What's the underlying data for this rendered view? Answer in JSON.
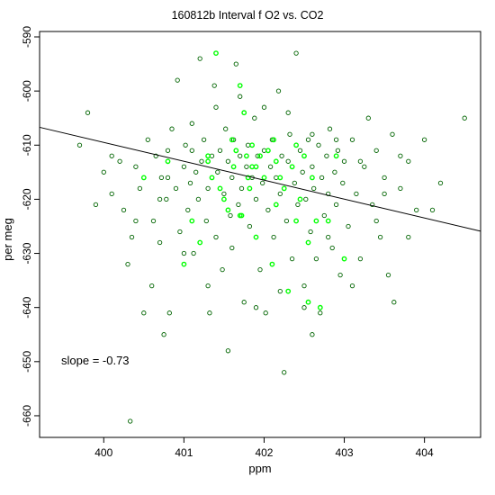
{
  "chart_data": {
    "type": "scatter",
    "title": "160812b   Interval f O2 vs. CO2",
    "xlabel": "ppm",
    "ylabel": "per meg",
    "xlim": [
      399.2,
      404.7
    ],
    "ylim": [
      -664,
      -589
    ],
    "x_ticks": [
      400,
      401,
      402,
      403,
      404
    ],
    "x_tick_labels": [
      "400",
      "401",
      "402",
      "403",
      "404"
    ],
    "y_ticks": [
      -590,
      -600,
      -610,
      -620,
      -630,
      -640,
      -650,
      -660
    ],
    "y_tick_labels": [
      "-590",
      "-600",
      "-610",
      "-620",
      "-630",
      "-640",
      "-650",
      "-660"
    ],
    "grid": false,
    "annotation": "slope =  -0.73",
    "colors": {
      "dark_series": "#006400",
      "bright_series": "#00ff00",
      "regression_line": "#000000",
      "frame": "#000000"
    },
    "regression_line": {
      "x": [
        399.2,
        404.7
      ],
      "y": [
        -606.7,
        -625.9
      ]
    },
    "series": [
      {
        "color": "#006400",
        "points": [
          [
            399.7,
            -610
          ],
          [
            399.8,
            -604
          ],
          [
            399.9,
            -621
          ],
          [
            400.0,
            -615
          ],
          [
            400.1,
            -619
          ],
          [
            400.2,
            -613
          ],
          [
            400.25,
            -622
          ],
          [
            400.3,
            -632
          ],
          [
            400.35,
            -627
          ],
          [
            400.4,
            -614
          ],
          [
            400.45,
            -618
          ],
          [
            400.5,
            -641
          ],
          [
            400.55,
            -609
          ],
          [
            400.6,
            -636
          ],
          [
            400.62,
            -624
          ],
          [
            400.65,
            -612
          ],
          [
            400.7,
            -628
          ],
          [
            400.72,
            -616
          ],
          [
            400.75,
            -645
          ],
          [
            400.78,
            -620
          ],
          [
            400.8,
            -611
          ],
          [
            400.82,
            -641
          ],
          [
            400.85,
            -607
          ],
          [
            400.9,
            -618
          ],
          [
            400.92,
            -598
          ],
          [
            400.95,
            -626
          ],
          [
            401.0,
            -614
          ],
          [
            401.02,
            -610
          ],
          [
            401.05,
            -622
          ],
          [
            401.08,
            -617
          ],
          [
            401.1,
            -611
          ],
          [
            401.12,
            -630
          ],
          [
            401.15,
            -615
          ],
          [
            401.18,
            -620
          ],
          [
            401.2,
            -594
          ],
          [
            401.22,
            -613
          ],
          [
            401.25,
            -609
          ],
          [
            401.28,
            -624
          ],
          [
            401.3,
            -618
          ],
          [
            401.32,
            -641
          ],
          [
            401.35,
            -612
          ],
          [
            401.38,
            -599
          ],
          [
            401.4,
            -627
          ],
          [
            401.42,
            -615
          ],
          [
            401.45,
            -611
          ],
          [
            401.48,
            -633
          ],
          [
            401.5,
            -619
          ],
          [
            401.52,
            -607
          ],
          [
            401.55,
            -613
          ],
          [
            401.58,
            -623
          ],
          [
            401.6,
            -616
          ],
          [
            401.62,
            -609
          ],
          [
            401.65,
            -595
          ],
          [
            401.68,
            -621
          ],
          [
            401.7,
            -612
          ],
          [
            401.72,
            -618
          ],
          [
            401.75,
            -639
          ],
          [
            401.78,
            -614
          ],
          [
            401.8,
            -610
          ],
          [
            401.82,
            -625
          ],
          [
            401.85,
            -616
          ],
          [
            401.88,
            -605
          ],
          [
            401.9,
            -620
          ],
          [
            401.92,
            -612
          ],
          [
            401.95,
            -633
          ],
          [
            401.98,
            -617
          ],
          [
            402.0,
            -611
          ],
          [
            402.02,
            -641
          ],
          [
            402.05,
            -622
          ],
          [
            402.08,
            -614
          ],
          [
            402.1,
            -609
          ],
          [
            402.12,
            -627
          ],
          [
            402.15,
            -616
          ],
          [
            402.18,
            -600
          ],
          [
            402.2,
            -619
          ],
          [
            402.22,
            -612
          ],
          [
            402.25,
            -652
          ],
          [
            402.28,
            -624
          ],
          [
            402.3,
            -613
          ],
          [
            402.32,
            -608
          ],
          [
            402.35,
            -631
          ],
          [
            402.38,
            -617
          ],
          [
            402.4,
            -593
          ],
          [
            402.42,
            -621
          ],
          [
            402.45,
            -611
          ],
          [
            402.48,
            -615
          ],
          [
            402.5,
            -636
          ],
          [
            402.52,
            -620
          ],
          [
            402.55,
            -609
          ],
          [
            402.58,
            -626
          ],
          [
            402.6,
            -614
          ],
          [
            402.62,
            -618
          ],
          [
            402.65,
            -631
          ],
          [
            402.68,
            -610
          ],
          [
            402.7,
            -641
          ],
          [
            402.72,
            -616
          ],
          [
            402.75,
            -623
          ],
          [
            402.78,
            -612
          ],
          [
            402.8,
            -619
          ],
          [
            402.82,
            -607
          ],
          [
            402.85,
            -629
          ],
          [
            402.88,
            -615
          ],
          [
            402.9,
            -621
          ],
          [
            402.92,
            -611
          ],
          [
            402.95,
            -634
          ],
          [
            402.98,
            -617
          ],
          [
            403.0,
            -613
          ],
          [
            403.05,
            -625
          ],
          [
            403.1,
            -609
          ],
          [
            403.15,
            -619
          ],
          [
            403.2,
            -631
          ],
          [
            403.25,
            -614
          ],
          [
            403.3,
            -605
          ],
          [
            403.35,
            -621
          ],
          [
            403.4,
            -611
          ],
          [
            403.45,
            -627
          ],
          [
            403.5,
            -616
          ],
          [
            403.55,
            -634
          ],
          [
            403.6,
            -608
          ],
          [
            403.62,
            -639
          ],
          [
            403.7,
            -618
          ],
          [
            403.8,
            -613
          ],
          [
            403.9,
            -622
          ],
          [
            404.0,
            -609
          ],
          [
            404.1,
            -622
          ],
          [
            404.2,
            -617
          ],
          [
            404.5,
            -605
          ],
          [
            400.33,
            -661
          ],
          [
            401.55,
            -648
          ],
          [
            402.6,
            -645
          ],
          [
            400.1,
            -612
          ],
          [
            400.4,
            -624
          ],
          [
            400.7,
            -620
          ],
          [
            401.0,
            -630
          ],
          [
            401.3,
            -636
          ],
          [
            401.6,
            -629
          ],
          [
            401.9,
            -640
          ],
          [
            402.2,
            -637
          ],
          [
            402.5,
            -640
          ],
          [
            402.8,
            -627
          ],
          [
            403.1,
            -636
          ],
          [
            403.4,
            -624
          ],
          [
            403.7,
            -612
          ],
          [
            400.8,
            -616
          ],
          [
            401.1,
            -606
          ],
          [
            401.4,
            -603
          ],
          [
            401.7,
            -601
          ],
          [
            402.0,
            -603
          ],
          [
            402.3,
            -604
          ],
          [
            402.6,
            -608
          ],
          [
            402.9,
            -609
          ],
          [
            403.2,
            -613
          ],
          [
            403.5,
            -619
          ],
          [
            403.8,
            -627
          ]
        ]
      },
      {
        "color": "#00ff00",
        "points": [
          [
            400.5,
            -616
          ],
          [
            400.8,
            -613
          ],
          [
            401.0,
            -632
          ],
          [
            401.1,
            -624
          ],
          [
            401.2,
            -628
          ],
          [
            401.3,
            -612
          ],
          [
            401.35,
            -616
          ],
          [
            401.4,
            -593
          ],
          [
            401.45,
            -618
          ],
          [
            401.5,
            -620
          ],
          [
            401.55,
            -622
          ],
          [
            401.6,
            -609
          ],
          [
            401.62,
            -614
          ],
          [
            401.65,
            -611
          ],
          [
            401.7,
            -599
          ],
          [
            401.72,
            -623
          ],
          [
            401.75,
            -604
          ],
          [
            401.78,
            -612
          ],
          [
            401.8,
            -616
          ],
          [
            401.82,
            -618
          ],
          [
            401.85,
            -610
          ],
          [
            401.9,
            -614
          ],
          [
            401.95,
            -612
          ],
          [
            402.0,
            -616
          ],
          [
            402.05,
            -611
          ],
          [
            402.1,
            -632
          ],
          [
            402.12,
            -609
          ],
          [
            402.15,
            -621
          ],
          [
            402.2,
            -616
          ],
          [
            402.25,
            -618
          ],
          [
            402.3,
            -637
          ],
          [
            402.35,
            -614
          ],
          [
            402.4,
            -610
          ],
          [
            402.45,
            -620
          ],
          [
            402.5,
            -612
          ],
          [
            402.55,
            -628
          ],
          [
            402.6,
            -616
          ],
          [
            402.65,
            -624
          ],
          [
            402.7,
            -640
          ],
          [
            402.8,
            -624
          ],
          [
            402.9,
            -612
          ],
          [
            403.0,
            -631
          ],
          [
            401.7,
            -623
          ],
          [
            401.9,
            -627
          ],
          [
            402.4,
            -624
          ],
          [
            402.55,
            -639
          ],
          [
            401.3,
            -613
          ],
          [
            401.85,
            -614
          ],
          [
            402.15,
            -613
          ]
        ]
      }
    ]
  }
}
